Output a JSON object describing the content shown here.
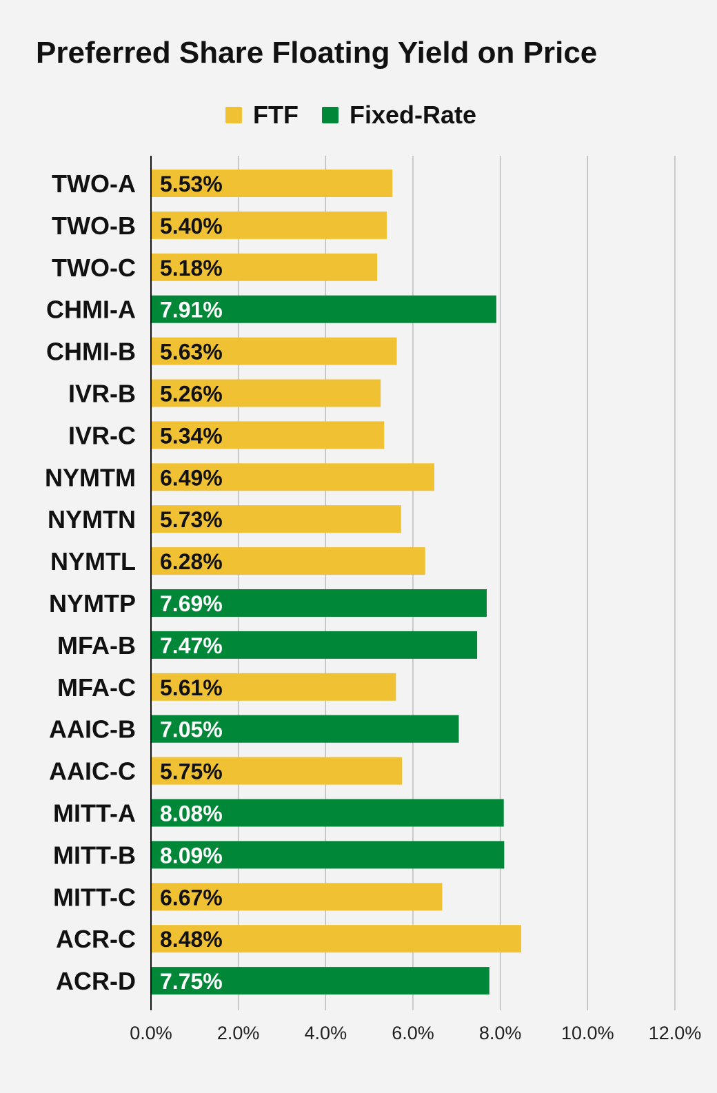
{
  "chart_data": {
    "type": "bar",
    "orientation": "horizontal",
    "title": "Preferred Share Floating Yield on Price",
    "xlabel": "",
    "ylabel": "",
    "xlim": [
      0,
      12
    ],
    "x_ticks": [
      "0.0%",
      "2.0%",
      "4.0%",
      "6.0%",
      "8.0%",
      "10.0%",
      "12.0%"
    ],
    "grid": true,
    "legend_position": "top-center",
    "series": [
      {
        "name": "FTF",
        "color": "#f0c233"
      },
      {
        "name": "Fixed-Rate",
        "color": "#008838"
      }
    ],
    "categories": [
      "TWO-A",
      "TWO-B",
      "TWO-C",
      "CHMI-A",
      "CHMI-B",
      "IVR-B",
      "IVR-C",
      "NYMTM",
      "NYMTN",
      "NYMTL",
      "NYMTP",
      "MFA-B",
      "MFA-C",
      "AAIC-B",
      "AAIC-C",
      "MITT-A",
      "MITT-B",
      "MITT-C",
      "ACR-C",
      "ACR-D"
    ],
    "values": [
      5.53,
      5.4,
      5.18,
      7.91,
      5.63,
      5.26,
      5.34,
      6.49,
      5.73,
      6.28,
      7.69,
      7.47,
      5.61,
      7.05,
      5.75,
      8.08,
      8.09,
      6.67,
      8.48,
      7.75
    ],
    "value_labels": [
      "5.53%",
      "5.40%",
      "5.18%",
      "7.91%",
      "5.63%",
      "5.26%",
      "5.34%",
      "6.49%",
      "5.73%",
      "6.28%",
      "7.69%",
      "7.47%",
      "5.61%",
      "7.05%",
      "5.75%",
      "8.08%",
      "8.09%",
      "6.67%",
      "8.48%",
      "7.75%"
    ],
    "bar_series": [
      "FTF",
      "FTF",
      "FTF",
      "Fixed-Rate",
      "FTF",
      "FTF",
      "FTF",
      "FTF",
      "FTF",
      "FTF",
      "Fixed-Rate",
      "Fixed-Rate",
      "FTF",
      "Fixed-Rate",
      "FTF",
      "Fixed-Rate",
      "Fixed-Rate",
      "FTF",
      "FTF",
      "Fixed-Rate"
    ]
  },
  "colors": {
    "background": "#f3f3f3",
    "grid": "#bdbdbd",
    "axis": "#111111",
    "label_dark": "#111111",
    "label_light": "#ffffff"
  }
}
